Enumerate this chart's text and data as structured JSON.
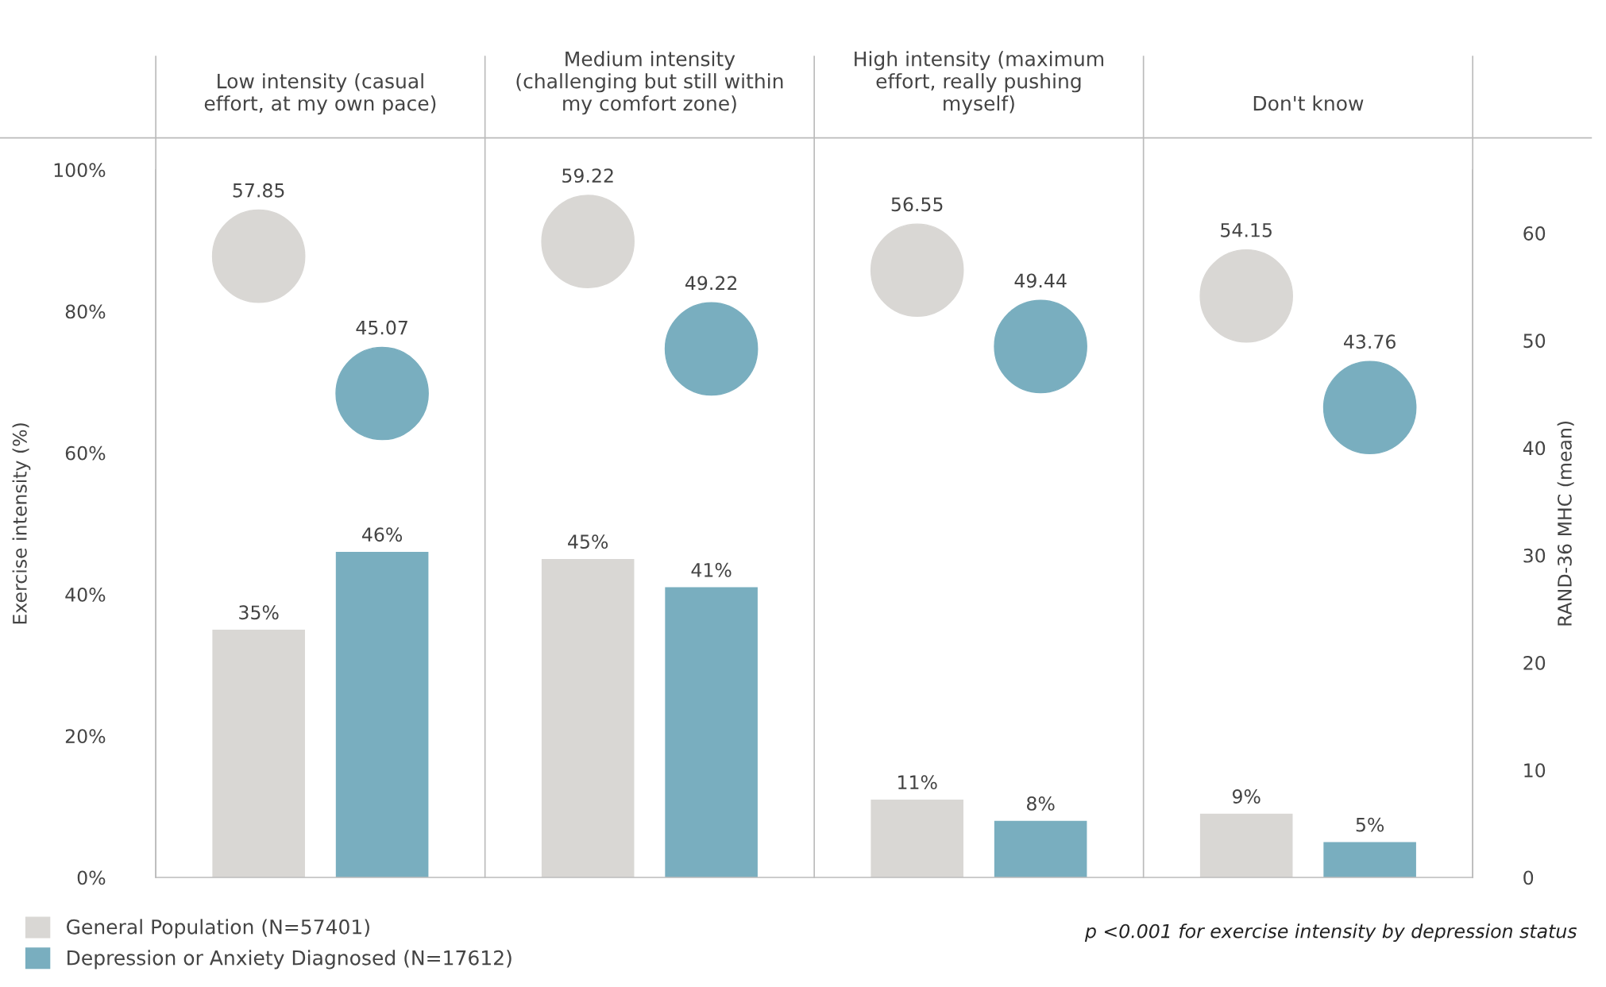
{
  "chart_data": {
    "type": "bar",
    "categories": [
      "Low intensity (casual\neffort, at my own pace)",
      "Medium intensity\n(challenging but still within\nmy comfort zone)",
      "High intensity (maximum\neffort, really pushing\nmyself)",
      "Don't know"
    ],
    "series": [
      {
        "name": "General Population (N=57401)",
        "color": "#d9d7d4",
        "values": [
          35,
          45,
          11,
          9
        ],
        "value_labels": [
          "35%",
          "45%",
          "11%",
          "9%"
        ]
      },
      {
        "name": "Depression or Anxiety Diagnosed (N=17612)",
        "color": "#79aebf",
        "values": [
          46,
          41,
          8,
          5
        ],
        "value_labels": [
          "46%",
          "41%",
          "8%",
          "5%"
        ]
      },
      {
        "type": "scatter",
        "axis": "y2",
        "color": "#d9d7d4",
        "values": [
          57.85,
          59.22,
          56.55,
          54.15
        ],
        "value_labels": [
          "57.85",
          "59.22",
          "56.55",
          "54.15"
        ]
      },
      {
        "type": "scatter",
        "axis": "y2",
        "color": "#79aebf",
        "values": [
          45.07,
          49.22,
          49.44,
          43.76
        ],
        "value_labels": [
          "45.07",
          "49.22",
          "49.44",
          "43.76"
        ]
      }
    ],
    "ylabel": "Exercise intensity (%)",
    "y2label": "RAND-36 MHC (mean)",
    "ylim": [
      0,
      100
    ],
    "yticks": [
      {
        "value": 0,
        "label": "0%"
      },
      {
        "value": 20,
        "label": "20%"
      },
      {
        "value": 40,
        "label": "40%"
      },
      {
        "value": 60,
        "label": "60%"
      },
      {
        "value": 80,
        "label": "80%"
      },
      {
        "value": 100,
        "label": "100%"
      }
    ],
    "y2lim": [
      0,
      65.9
    ],
    "y2ticks": [
      0,
      10,
      20,
      30,
      40,
      50,
      60
    ],
    "marker": "circle",
    "grid": false,
    "legend": "bottom left",
    "annotations": [
      "p <0.001 for exercise intensity by depression status"
    ]
  }
}
